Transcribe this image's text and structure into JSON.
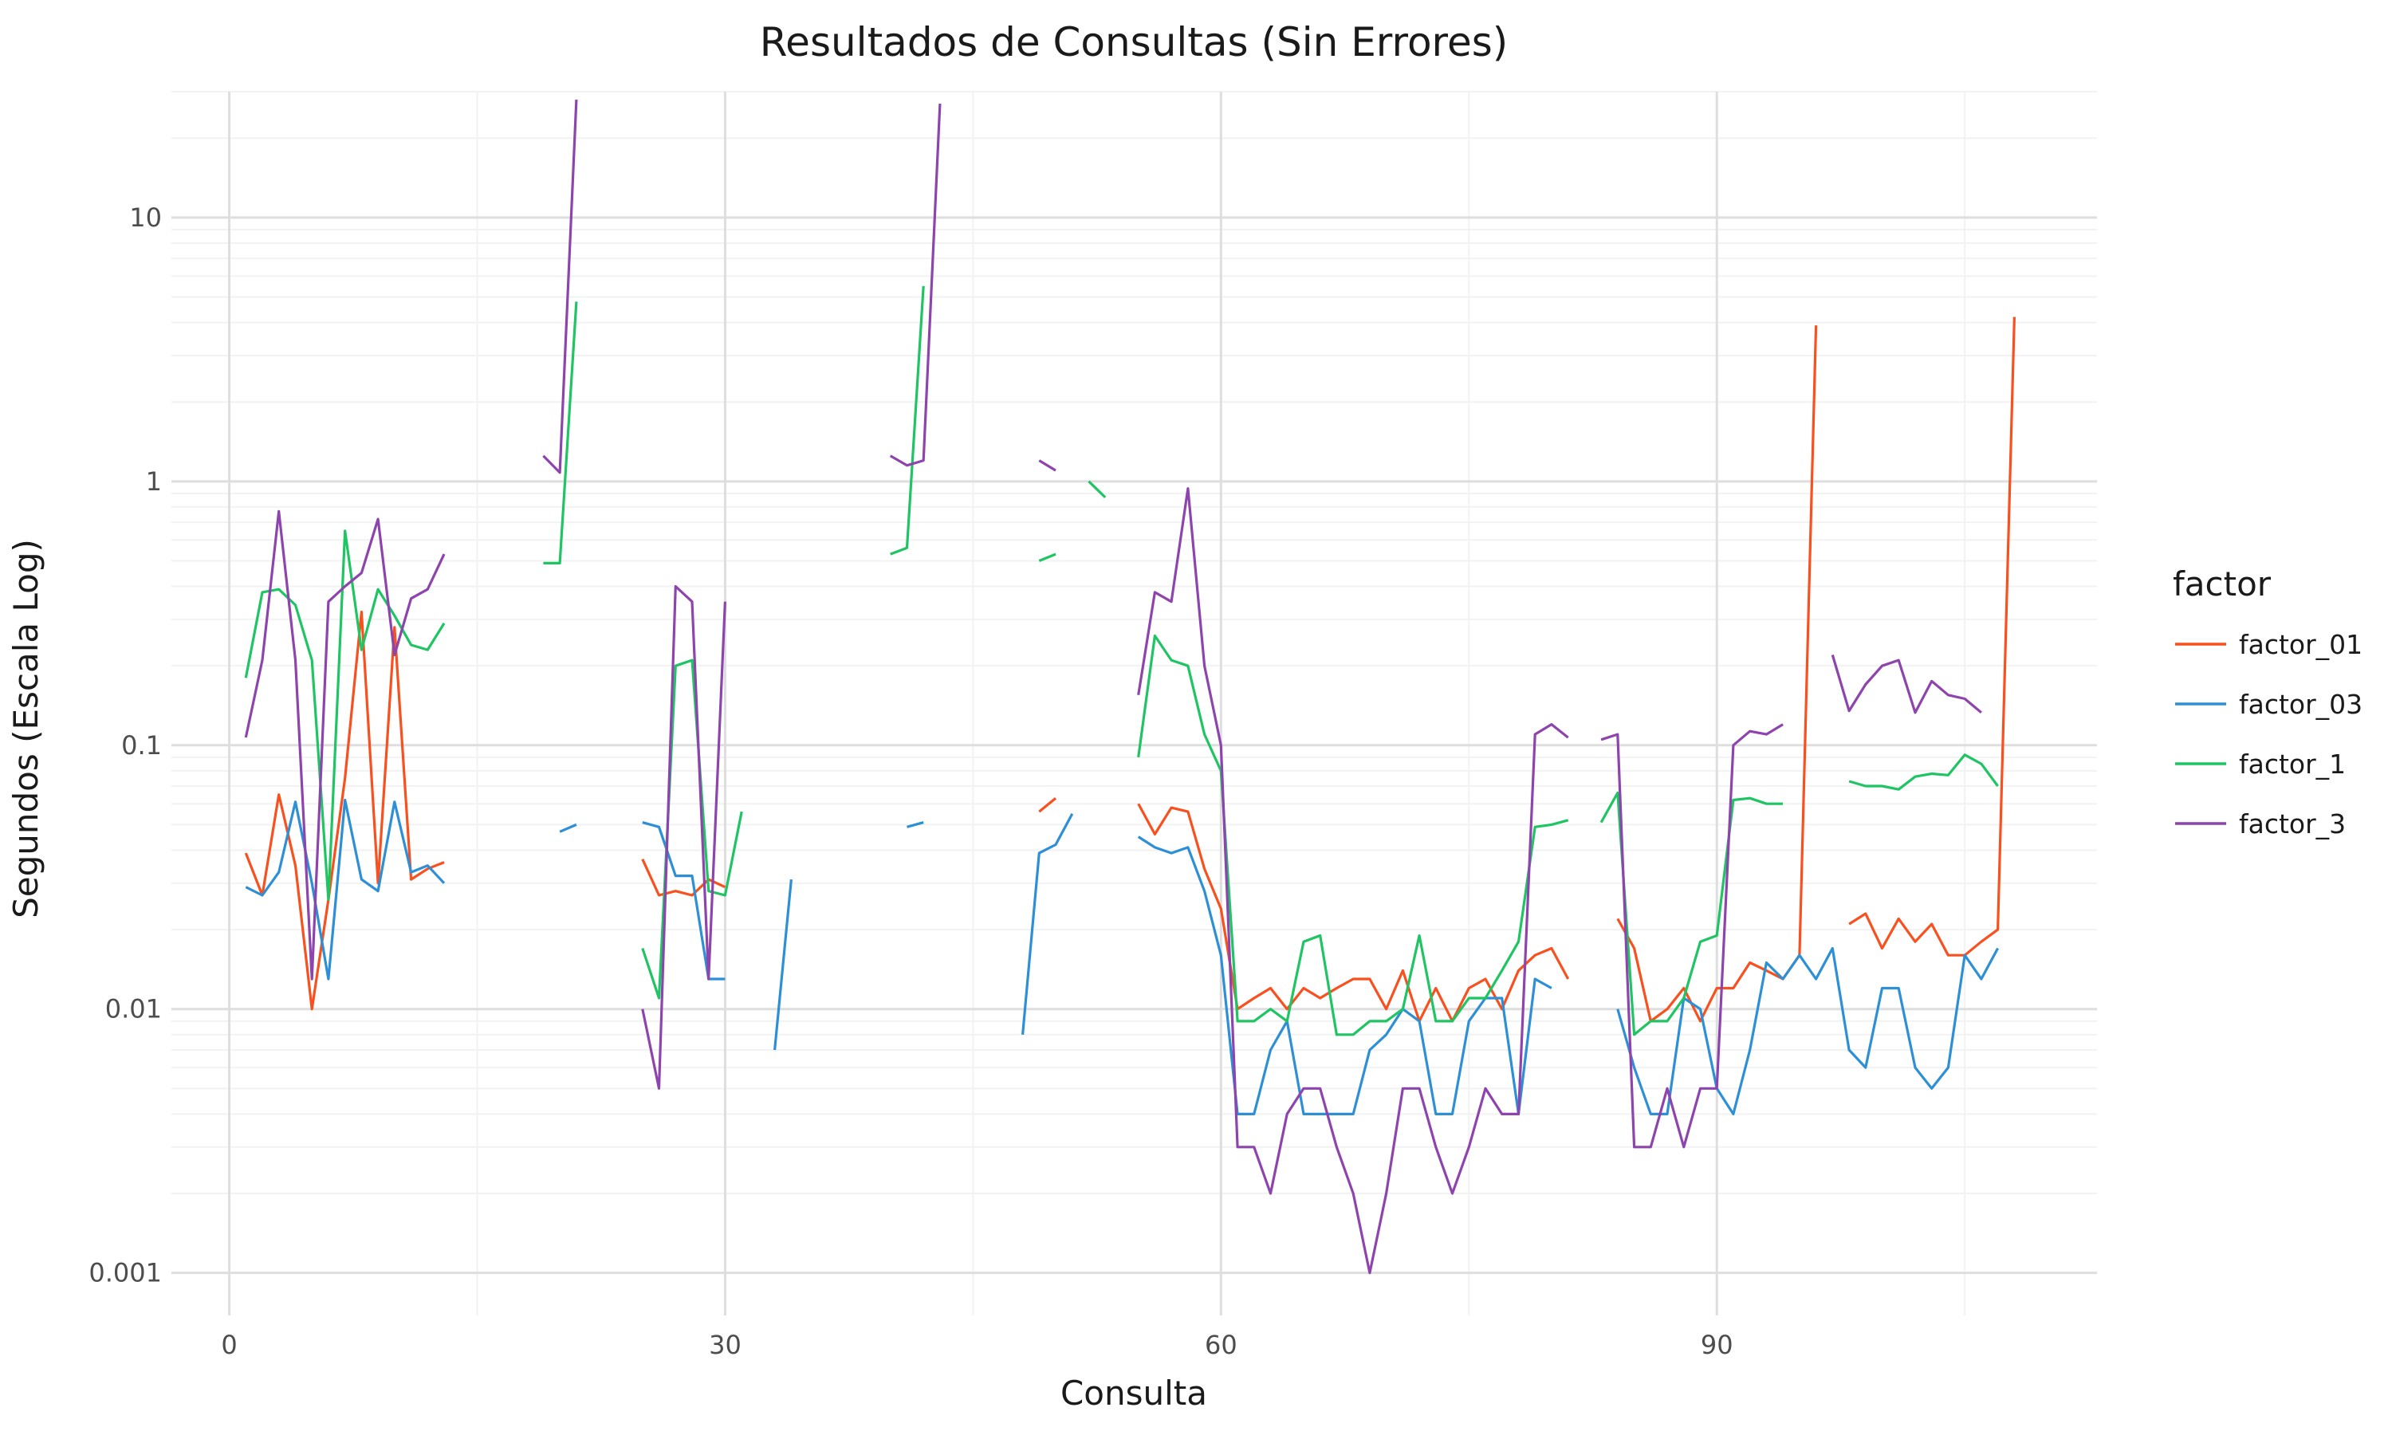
{
  "chart_data": {
    "type": "line",
    "title": "Resultados de Consultas (Sin Errores)",
    "xlabel": "Consulta",
    "ylabel": "Segundos (Escala Log)",
    "xlim": [
      -3.5,
      113
    ],
    "ylim": [
      0.00069,
      30
    ],
    "y_scale": "log",
    "grid": true,
    "legend": {
      "title": "factor",
      "position": "right"
    },
    "x_ticks": [
      0,
      30,
      60,
      90
    ],
    "x_tick_labels": [
      "0",
      "30",
      "60",
      "90"
    ],
    "y_ticks": [
      0.001,
      0.01,
      0.1,
      1,
      10
    ],
    "y_tick_labels": [
      "0.001",
      "0.01",
      "0.1",
      "1",
      "10"
    ],
    "series": [
      {
        "name": "factor_01",
        "color": "#F8501E",
        "x": [
          1,
          2,
          3,
          4,
          5,
          6,
          7,
          8,
          9,
          10,
          11,
          12,
          13,
          25,
          26,
          27,
          28,
          29,
          30,
          49,
          50,
          55,
          56,
          57,
          58,
          59,
          60,
          61,
          62,
          63,
          64,
          65,
          66,
          67,
          68,
          69,
          70,
          71,
          72,
          73,
          74,
          75,
          76,
          77,
          78,
          79,
          80,
          81,
          84,
          85,
          86,
          87,
          88,
          89,
          90,
          91,
          92,
          93,
          94,
          95,
          96,
          97,
          98,
          99,
          100,
          101,
          102,
          103,
          104,
          105,
          106,
          107,
          108
        ],
        "y": [
          0.039,
          0.027,
          0.065,
          0.035,
          0.01,
          0.026,
          0.075,
          0.32,
          0.03,
          0.28,
          0.031,
          0.034,
          0.036,
          0.037,
          0.027,
          0.028,
          0.027,
          0.031,
          0.029,
          0.056,
          0.063,
          0.06,
          0.046,
          0.058,
          0.056,
          0.034,
          0.024,
          0.01,
          0.011,
          0.012,
          0.01,
          0.012,
          0.011,
          0.012,
          0.013,
          0.013,
          0.01,
          0.014,
          0.009,
          0.012,
          0.009,
          0.012,
          0.013,
          0.01,
          0.014,
          0.016,
          0.017,
          0.013,
          0.022,
          0.017,
          0.009,
          0.01,
          0.012,
          0.009,
          0.012,
          0.012,
          0.015,
          0.014,
          0.013,
          0.016,
          3.9,
          null,
          0.021,
          0.023,
          0.017,
          0.022,
          0.018,
          0.021,
          0.016,
          0.016,
          0.018,
          0.02,
          4.2
        ]
      },
      {
        "name": "factor_03",
        "color": "#2D8FD5",
        "x": [
          1,
          2,
          3,
          4,
          5,
          6,
          7,
          8,
          9,
          10,
          11,
          12,
          13,
          20,
          21,
          25,
          26,
          27,
          28,
          29,
          30,
          33,
          34,
          41,
          42,
          48,
          49,
          50,
          51,
          55,
          56,
          57,
          58,
          59,
          60,
          61,
          62,
          63,
          64,
          65,
          66,
          67,
          68,
          69,
          70,
          71,
          72,
          73,
          74,
          75,
          76,
          77,
          78,
          79,
          80,
          81,
          84,
          85,
          86,
          87,
          88,
          89,
          90,
          91,
          92,
          93,
          94,
          95,
          96,
          97,
          98,
          99,
          100,
          101,
          102,
          103,
          104,
          105,
          106,
          107,
          108
        ],
        "y": [
          0.029,
          0.027,
          0.033,
          0.061,
          0.03,
          0.013,
          0.062,
          0.031,
          0.028,
          0.061,
          0.033,
          0.035,
          0.03,
          0.047,
          0.05,
          0.051,
          0.049,
          0.032,
          0.032,
          0.013,
          0.013,
          0.007,
          0.031,
          0.049,
          0.051,
          0.008,
          0.039,
          0.042,
          0.055,
          0.045,
          0.041,
          0.039,
          0.041,
          0.028,
          0.016,
          0.004,
          0.004,
          0.007,
          0.009,
          0.004,
          0.004,
          0.004,
          0.004,
          0.007,
          0.008,
          0.01,
          0.009,
          0.004,
          0.004,
          0.009,
          0.011,
          0.011,
          0.004,
          0.013,
          0.012,
          null,
          0.01,
          0.006,
          0.004,
          0.004,
          0.011,
          0.01,
          0.005,
          0.004,
          0.007,
          0.015,
          0.013,
          0.016,
          0.013,
          0.017,
          0.007,
          0.006,
          0.012,
          0.012,
          0.006,
          0.005,
          0.006,
          0.016,
          0.013,
          0.017,
          null
        ]
      },
      {
        "name": "factor_1",
        "color": "#1FC463",
        "x": [
          1,
          2,
          3,
          4,
          5,
          6,
          7,
          8,
          9,
          10,
          11,
          12,
          13,
          19,
          20,
          21,
          25,
          26,
          27,
          28,
          29,
          30,
          31,
          40,
          41,
          42,
          49,
          50,
          52,
          53,
          55,
          56,
          57,
          58,
          59,
          60,
          61,
          62,
          63,
          64,
          65,
          66,
          67,
          68,
          69,
          70,
          71,
          72,
          73,
          74,
          75,
          76,
          77,
          78,
          79,
          80,
          81,
          83,
          84,
          85,
          86,
          87,
          88,
          89,
          90,
          91,
          92,
          93,
          94,
          95,
          96,
          97,
          98,
          99,
          100,
          101,
          102,
          103,
          104,
          105,
          106,
          107,
          108
        ],
        "y": [
          0.18,
          0.38,
          0.39,
          0.34,
          0.21,
          0.026,
          0.65,
          0.23,
          0.39,
          0.31,
          0.24,
          0.23,
          0.29,
          0.49,
          0.49,
          4.8,
          0.017,
          0.011,
          0.2,
          0.21,
          0.028,
          0.027,
          0.056,
          0.53,
          0.56,
          5.5,
          0.5,
          0.53,
          1.0,
          0.87,
          0.09,
          0.26,
          0.21,
          0.2,
          0.11,
          0.08,
          0.009,
          0.009,
          0.01,
          0.009,
          0.018,
          0.019,
          0.008,
          0.008,
          0.009,
          0.009,
          0.01,
          0.019,
          0.009,
          0.009,
          0.011,
          0.011,
          0.014,
          0.018,
          0.049,
          0.05,
          0.052,
          0.051,
          0.066,
          0.008,
          0.009,
          0.009,
          0.011,
          0.018,
          0.019,
          0.062,
          0.063,
          0.06,
          0.06,
          null,
          null,
          null,
          0.073,
          0.07,
          0.07,
          0.068,
          0.076,
          0.078,
          0.077,
          0.092,
          0.085,
          0.07,
          null
        ]
      },
      {
        "name": "factor_3",
        "color": "#8E44AD",
        "x": [
          1,
          2,
          3,
          4,
          5,
          6,
          7,
          8,
          9,
          10,
          11,
          12,
          13,
          19,
          20,
          21,
          25,
          26,
          27,
          28,
          29,
          30,
          40,
          41,
          42,
          43,
          49,
          50,
          55,
          56,
          57,
          58,
          59,
          60,
          61,
          62,
          63,
          64,
          65,
          66,
          67,
          68,
          69,
          70,
          71,
          72,
          73,
          74,
          75,
          76,
          77,
          78,
          79,
          80,
          81,
          83,
          84,
          85,
          86,
          87,
          88,
          89,
          90,
          91,
          92,
          93,
          94,
          95,
          96,
          97,
          98,
          99,
          100,
          101,
          102,
          103,
          104,
          105,
          106,
          107,
          108
        ],
        "y": [
          0.107,
          0.21,
          0.77,
          0.21,
          0.013,
          0.35,
          0.4,
          0.45,
          0.72,
          0.22,
          0.36,
          0.39,
          0.53,
          1.25,
          1.08,
          28.0,
          0.01,
          0.005,
          0.4,
          0.35,
          0.013,
          0.35,
          1.25,
          1.15,
          1.2,
          27.0,
          1.2,
          1.1,
          0.155,
          0.38,
          0.35,
          0.94,
          0.2,
          0.1,
          0.003,
          0.003,
          0.002,
          0.004,
          0.005,
          0.005,
          0.003,
          0.002,
          0.001,
          0.002,
          0.005,
          0.005,
          0.003,
          0.002,
          0.003,
          0.005,
          0.004,
          0.004,
          0.11,
          0.12,
          0.107,
          0.105,
          0.11,
          0.003,
          0.003,
          0.005,
          0.003,
          0.005,
          0.005,
          0.1,
          0.113,
          0.11,
          0.12,
          null,
          null,
          0.22,
          0.135,
          0.17,
          0.2,
          0.21,
          0.133,
          0.175,
          0.155,
          0.15,
          0.133,
          null,
          null
        ]
      }
    ]
  }
}
